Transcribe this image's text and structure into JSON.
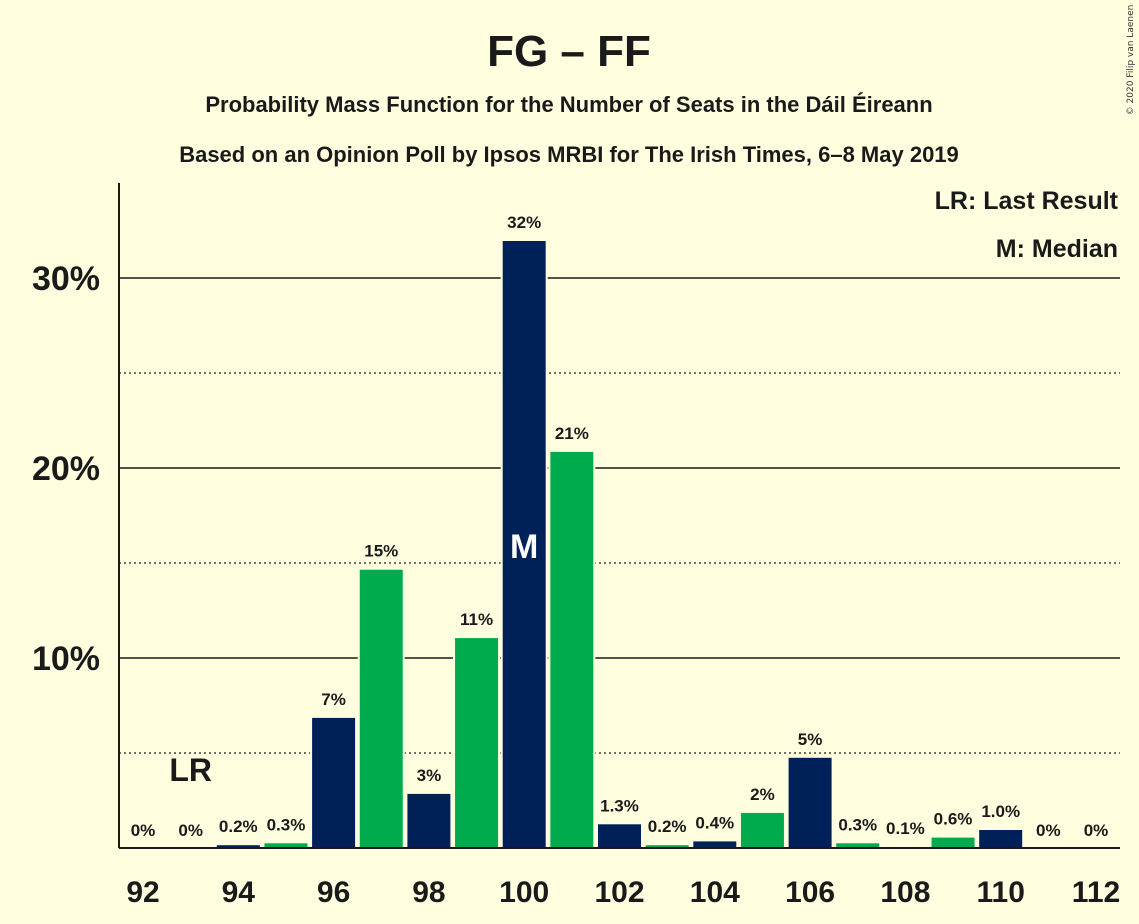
{
  "chart_data": {
    "type": "bar",
    "title": "FG – FF",
    "subtitle": [
      "Probability Mass Function for the Number of Seats in the Dáil Éireann",
      "Based on an Opinion Poll by Ipsos MRBI for The Irish Times, 6–8 May 2019"
    ],
    "xlabel": "",
    "ylabel": "",
    "ylim": [
      0,
      35
    ],
    "categories": [
      "92",
      "93",
      "94",
      "95",
      "96",
      "97",
      "98",
      "99",
      "100",
      "101",
      "102",
      "103",
      "104",
      "105",
      "106",
      "107",
      "108",
      "109",
      "110",
      "111",
      "112"
    ],
    "values": [
      0,
      0,
      0.2,
      0.3,
      6.9,
      14.7,
      2.9,
      11.1,
      32.0,
      20.9,
      1.3,
      0.2,
      0.4,
      1.9,
      4.8,
      0.3,
      0.1,
      0.6,
      1.0,
      0,
      0
    ],
    "data_labels": [
      "0%",
      "0%",
      "0.2%",
      "0.3%",
      "7%",
      "15%",
      "3%",
      "11%",
      "32%",
      "21%",
      "1.3%",
      "0.2%",
      "0.4%",
      "2%",
      "5%",
      "0.3%",
      "0.1%",
      "0.6%",
      "1.0%",
      "0%",
      "0%"
    ],
    "bar_colors": [
      "#002157",
      "#00AB4E",
      "#002157",
      "#00AB4E",
      "#002157",
      "#00AB4E",
      "#002157",
      "#00AB4E",
      "#002157",
      "#00AB4E",
      "#002157",
      "#00AB4E",
      "#002157",
      "#00AB4E",
      "#002157",
      "#00AB4E",
      "#002157",
      "#00AB4E",
      "#002157",
      "#00AB4E",
      "#002157"
    ],
    "xticks": [
      {
        "value": 92,
        "label": "92"
      },
      {
        "value": 94,
        "label": "94"
      },
      {
        "value": 96,
        "label": "96"
      },
      {
        "value": 98,
        "label": "98"
      },
      {
        "value": 100,
        "label": "100"
      },
      {
        "value": 102,
        "label": "102"
      },
      {
        "value": 104,
        "label": "104"
      },
      {
        "value": 106,
        "label": "106"
      },
      {
        "value": 108,
        "label": "108"
      },
      {
        "value": 110,
        "label": "110"
      },
      {
        "value": 112,
        "label": "112"
      }
    ],
    "yticks": [
      {
        "value": 10,
        "label": "10%"
      },
      {
        "value": 20,
        "label": "20%"
      },
      {
        "value": 30,
        "label": "30%"
      }
    ],
    "gridlines_major": [
      10,
      20,
      30
    ],
    "gridlines_minor": [
      5,
      15,
      25
    ],
    "median": {
      "seat": "100",
      "label": "M"
    },
    "last_result": {
      "seat": "93",
      "label": "LR"
    },
    "legend": [
      "LR: Last Result",
      "M: Median"
    ]
  },
  "credit": "© 2020 Filip van Laenen",
  "colors": {
    "background": "#FFFFE0",
    "text": "#1A1A1A",
    "navy": "#002157",
    "green": "#00AB4E"
  }
}
